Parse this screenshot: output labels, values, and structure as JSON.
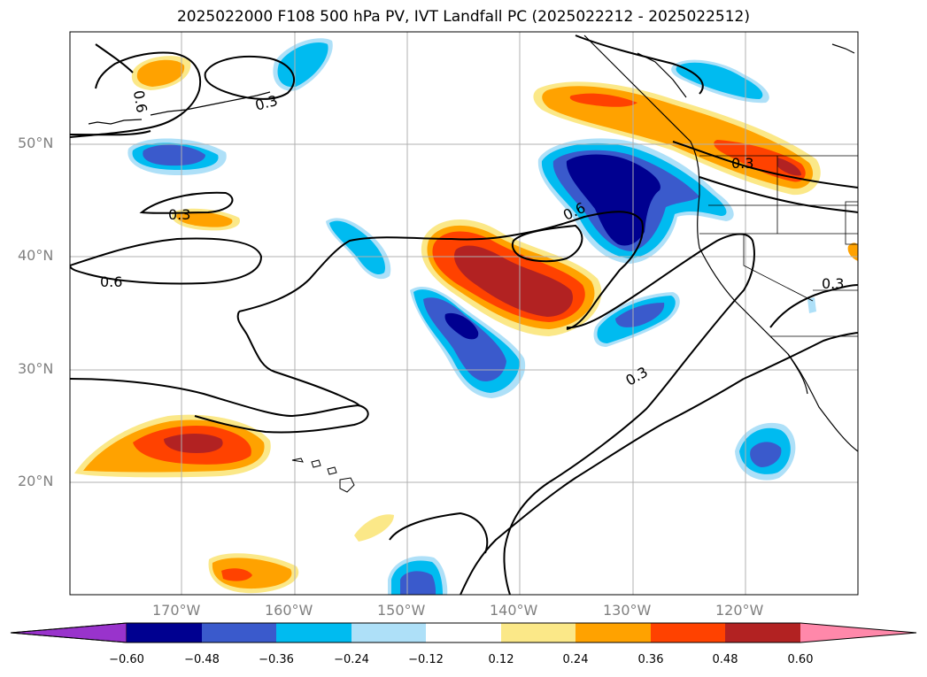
{
  "title": "2025022000 F108 500 hPa PV, IVT Landfall PC (2025022212 - 2025022512)",
  "map": {
    "lat_labels": [
      "50°N",
      "40°N",
      "30°N",
      "20°N"
    ],
    "lon_labels": [
      "170°W",
      "160°W",
      "150°W",
      "140°W",
      "130°W",
      "120°W"
    ],
    "contour_labels": [
      "0.6",
      "0.3",
      "0.3",
      "0.6",
      "0.6",
      "0.3",
      "0.3",
      "0.3"
    ]
  },
  "colorbar": {
    "ticks": [
      "−0.60",
      "−0.48",
      "−0.36",
      "−0.24",
      "−0.12",
      "0.12",
      "0.24",
      "0.36",
      "0.48",
      "0.60"
    ],
    "colors": [
      "#9933cc",
      "#000090",
      "#3a5acc",
      "#00bbf0",
      "#aee0f8",
      "#ffffff",
      "#fbe888",
      "#ffa200",
      "#ff4200",
      "#b22222",
      "#ff88aa"
    ]
  },
  "chart_data": {
    "type": "contour_map",
    "title": "2025022000 F108 500 hPa PV, IVT Landfall PC (2025022212 - 2025022512)",
    "fill_levels": [
      -0.6,
      -0.48,
      -0.36,
      -0.24,
      -0.12,
      0.12,
      0.24,
      0.36,
      0.48,
      0.6
    ],
    "contour_levels": [
      0.3,
      0.6
    ],
    "lat_ticks": [
      50,
      40,
      30,
      20
    ],
    "lon_ticks": [
      -170,
      -160,
      -150,
      -140,
      -130,
      -120
    ]
  }
}
